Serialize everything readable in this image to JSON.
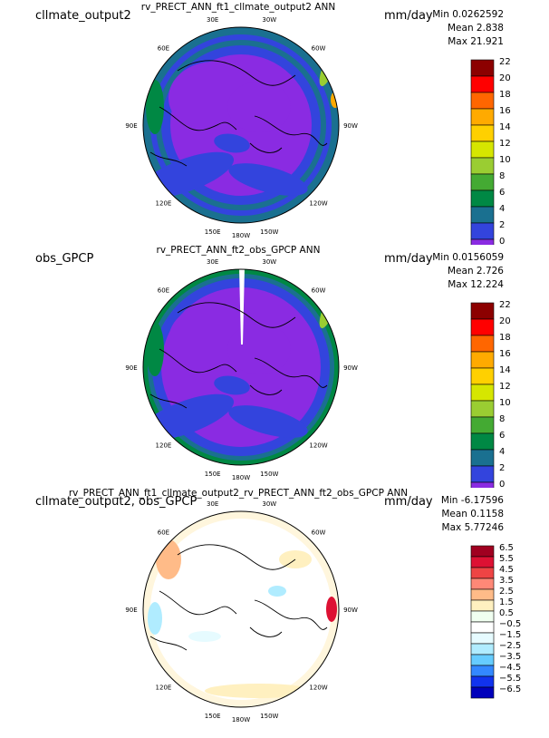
{
  "panels": [
    {
      "left_label": "cllmate_output2",
      "title": "rv_PRECT_ANN_ft1_cllmate_output2  ANN",
      "units": "mm/day",
      "stats": {
        "min": "Min 0.0262592",
        "mean": "Mean 2.838",
        "max": "Max 21.921"
      }
    },
    {
      "left_label": "obs_GPCP",
      "title": "rv_PRECT_ANN_ft2_obs_GPCP  ANN",
      "units": "mm/day",
      "stats": {
        "min": "Min 0.0156059",
        "mean": "Mean 2.726",
        "max": "Max 12.224"
      }
    },
    {
      "left_label": "cllmate_output2, obs_GPCP",
      "title": "rv_PRECT_ANN_ft1_cllmate_output2_rv_PRECT_ANN_ft2_obs_GPCP  ANN",
      "units": "mm/day",
      "stats": {
        "min": "Min -6.17596",
        "mean": "Mean 0.1158",
        "max": "Max 5.77246"
      }
    }
  ],
  "chart_data": [
    {
      "type": "heatmap",
      "projection": "polar stereographic (north pole)",
      "title": "rv_PRECT_ANN_ft1_cllmate_output2  ANN",
      "units": "mm/day",
      "longitude_labels": [
        "30E",
        "30W",
        "60E",
        "60W",
        "90E",
        "90W",
        "120E",
        "120W",
        "150E",
        "150W",
        "180W"
      ],
      "colorbar": {
        "ticks": [
          "22",
          "20",
          "18",
          "16",
          "14",
          "12",
          "10",
          "8",
          "6",
          "4",
          "2",
          "0"
        ],
        "colors": [
          "#8c0000",
          "#ff0000",
          "#ff6600",
          "#ffaa00",
          "#ffd000",
          "#d6e600",
          "#9acd32",
          "#44aa33",
          "#008844",
          "#1a7090",
          "#3344dd",
          "#8a2be2"
        ]
      }
    },
    {
      "type": "heatmap",
      "projection": "polar stereographic (north pole)",
      "title": "rv_PRECT_ANN_ft2_obs_GPCP  ANN",
      "units": "mm/day",
      "longitude_labels": [
        "30E",
        "30W",
        "60E",
        "60W",
        "90E",
        "90W",
        "120E",
        "120W",
        "150E",
        "150W",
        "180W"
      ],
      "colorbar": {
        "ticks": [
          "22",
          "20",
          "18",
          "16",
          "14",
          "12",
          "10",
          "8",
          "6",
          "4",
          "2",
          "0"
        ],
        "colors": [
          "#8c0000",
          "#ff0000",
          "#ff6600",
          "#ffaa00",
          "#ffd000",
          "#d6e600",
          "#9acd32",
          "#44aa33",
          "#008844",
          "#1a7090",
          "#3344dd",
          "#8a2be2"
        ]
      }
    },
    {
      "type": "heatmap",
      "projection": "polar stereographic (north pole)",
      "title": "rv_PRECT_ANN_ft1_cllmate_output2_rv_PRECT_ANN_ft2_obs_GPCP  ANN",
      "units": "mm/day",
      "longitude_labels": [
        "30E",
        "30W",
        "60E",
        "60W",
        "90E",
        "90W",
        "120E",
        "120W",
        "150E",
        "150W",
        "180W"
      ],
      "colorbar": {
        "ticks": [
          "6.5",
          "5.5",
          "4.5",
          "3.5",
          "2.5",
          "1.5",
          "0.5",
          "−0.5",
          "−1.5",
          "−2.5",
          "−3.5",
          "−4.5",
          "−5.5",
          "−6.5"
        ],
        "colors": [
          "#a00020",
          "#dd1133",
          "#ee4444",
          "#ff8877",
          "#ffbb88",
          "#fff0c0",
          "#f0fff0",
          "#ffffff",
          "#e6fbff",
          "#b0ecff",
          "#66ccff",
          "#3388ff",
          "#1133ee",
          "#0000bb"
        ]
      }
    }
  ]
}
